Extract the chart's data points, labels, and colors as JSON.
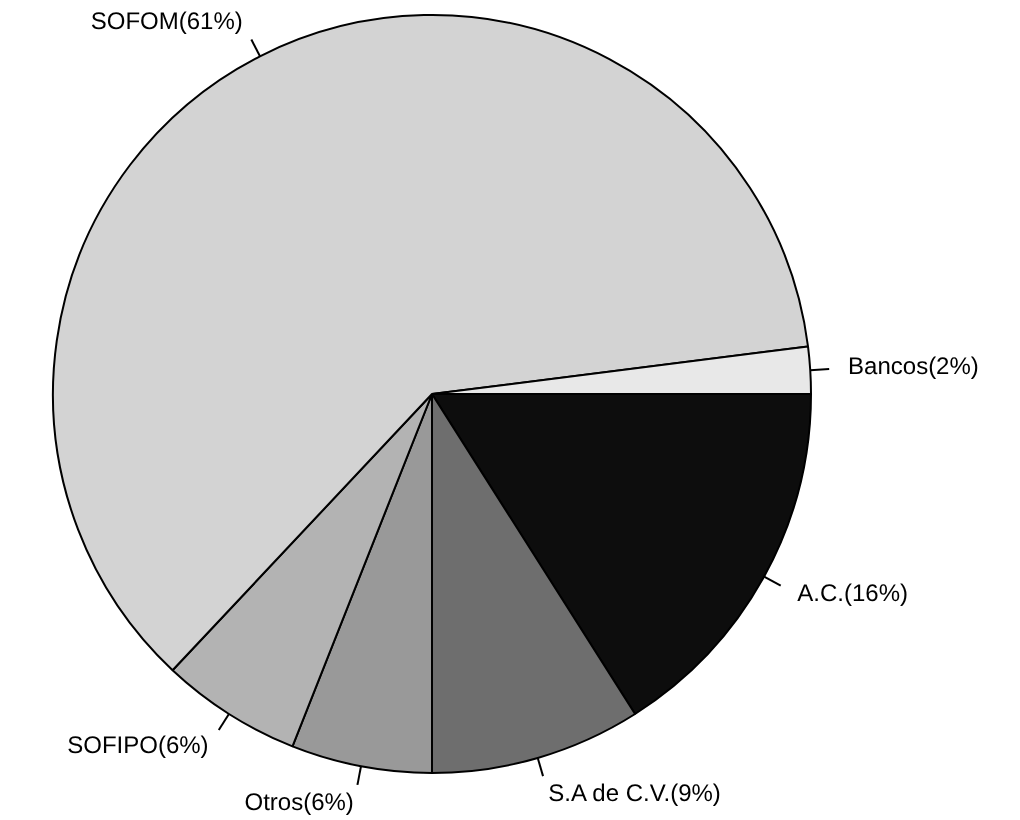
{
  "chart_data": {
    "type": "pie",
    "categories": [
      "A.C.(16%)",
      "S.A de C.V.(9%)",
      "Otros(6%)",
      "SOFIPO(6%)",
      "SOFOM(61%)",
      "Bancos(2%)"
    ],
    "values": [
      16,
      9,
      6,
      6,
      61,
      2
    ],
    "colors": [
      "#0d0d0d",
      "#6e6e6e",
      "#999999",
      "#b3b3b3",
      "#d3d3d3",
      "#e8e8e8"
    ],
    "legend": false
  }
}
